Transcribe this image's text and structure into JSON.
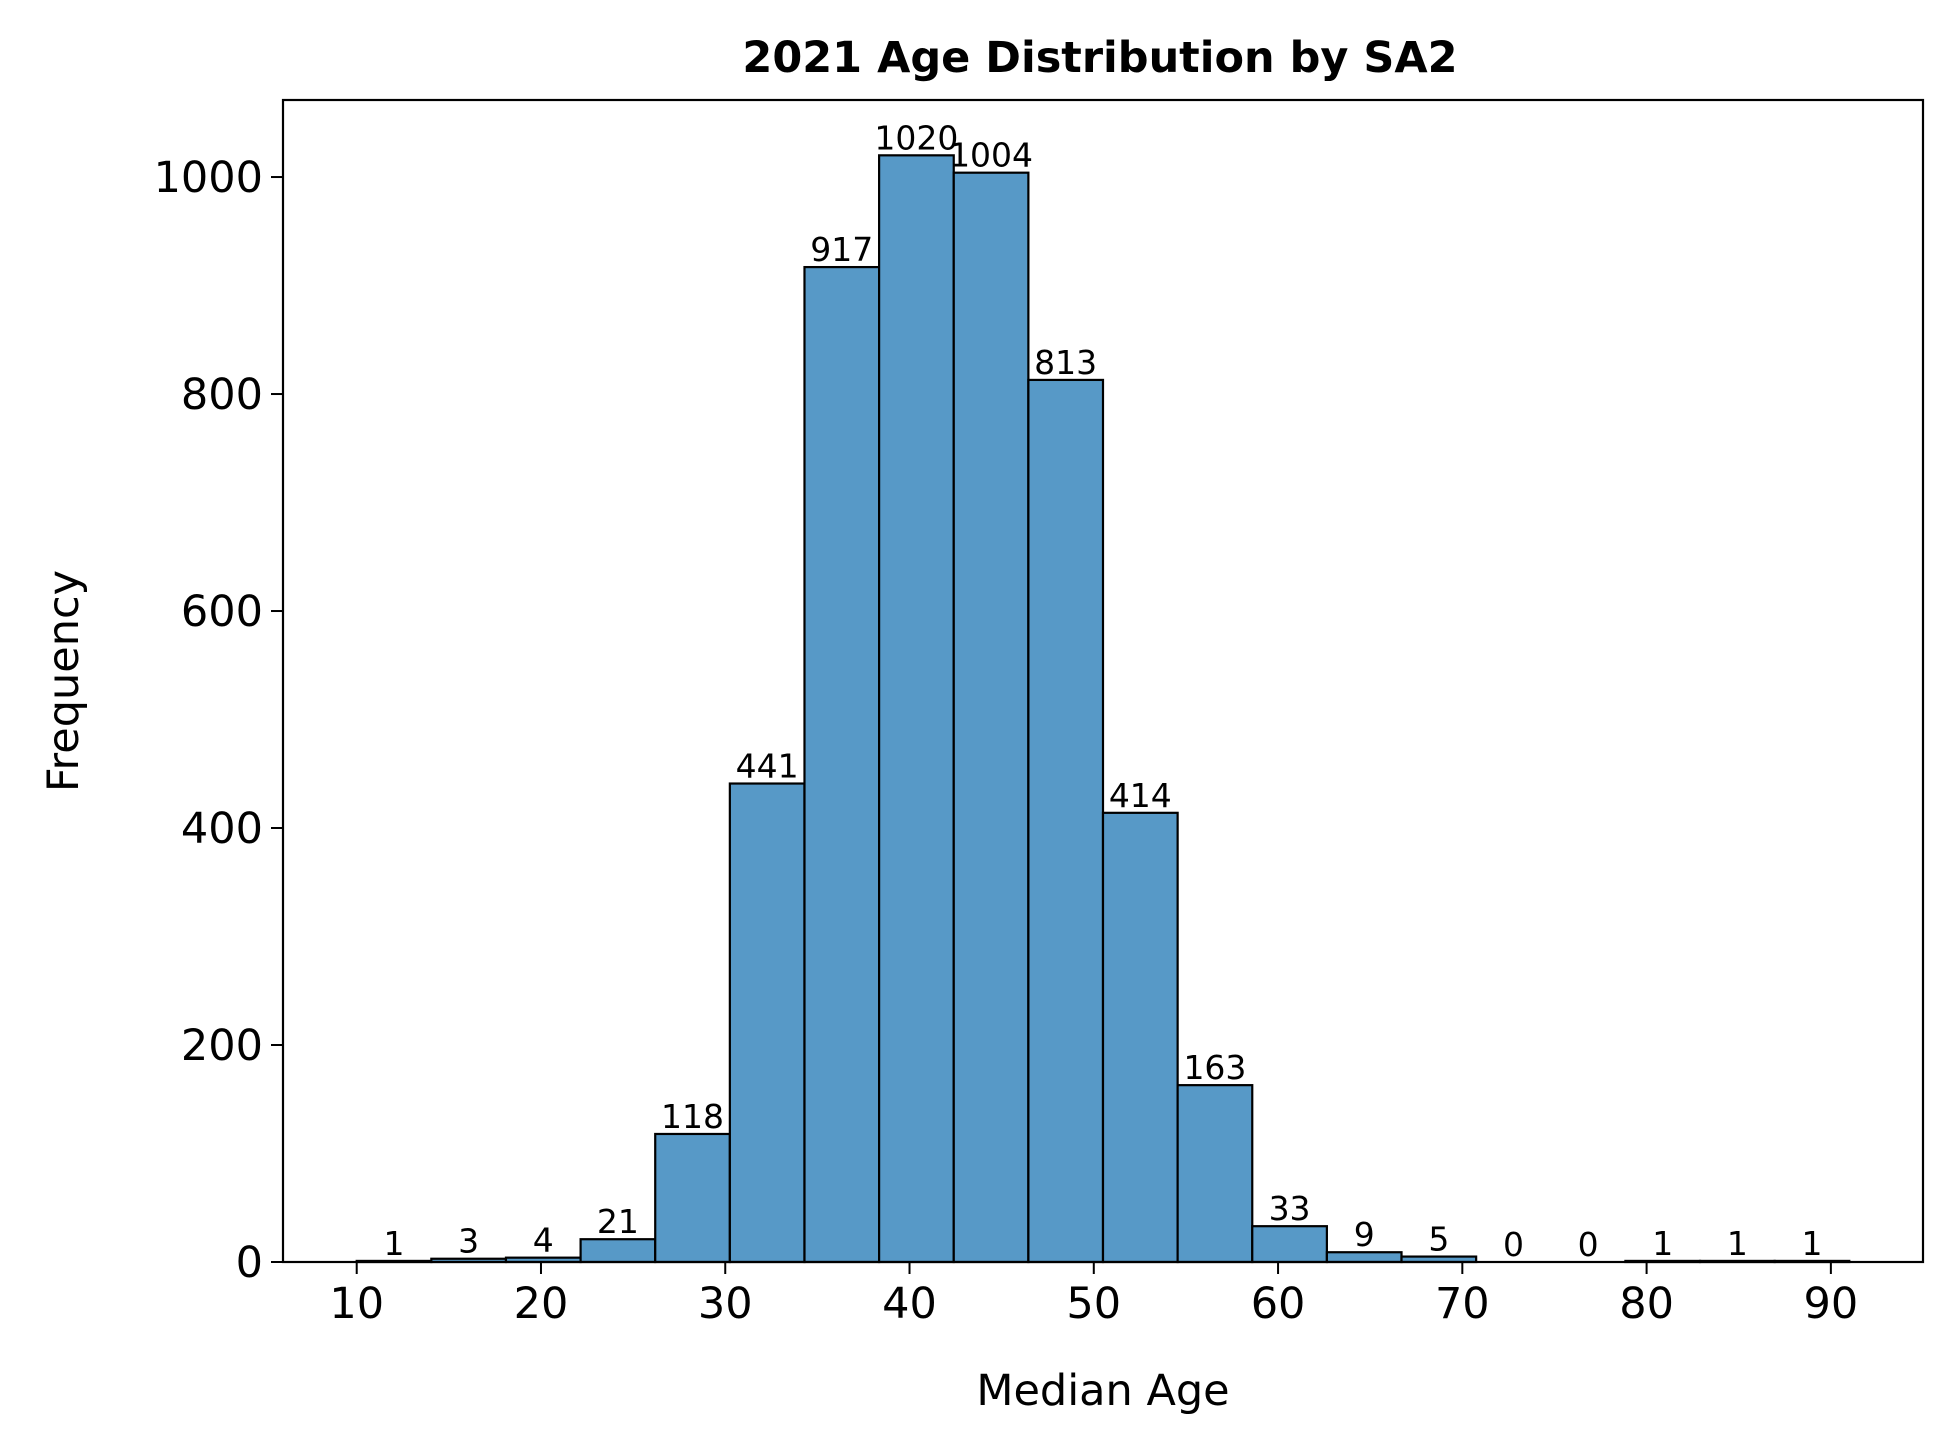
{
  "chart_data": {
    "type": "bar",
    "title": "2021 Age Distribution by SA2",
    "xlabel": "Median Age",
    "ylabel": "Frequency",
    "bin_start": 10,
    "bin_width": 4.05,
    "values": [
      1,
      3,
      4,
      21,
      118,
      441,
      917,
      1020,
      1004,
      813,
      414,
      163,
      33,
      9,
      5,
      0,
      0,
      1,
      1,
      1
    ],
    "xlim": [
      6,
      95
    ],
    "ylim": [
      0,
      1071
    ],
    "xticks": [
      10,
      20,
      30,
      40,
      50,
      60,
      70,
      80,
      90
    ],
    "yticks": [
      0,
      200,
      400,
      600,
      800,
      1000
    ],
    "grid": false,
    "bar_color": "#5799c7",
    "edge_color": "#000000"
  }
}
